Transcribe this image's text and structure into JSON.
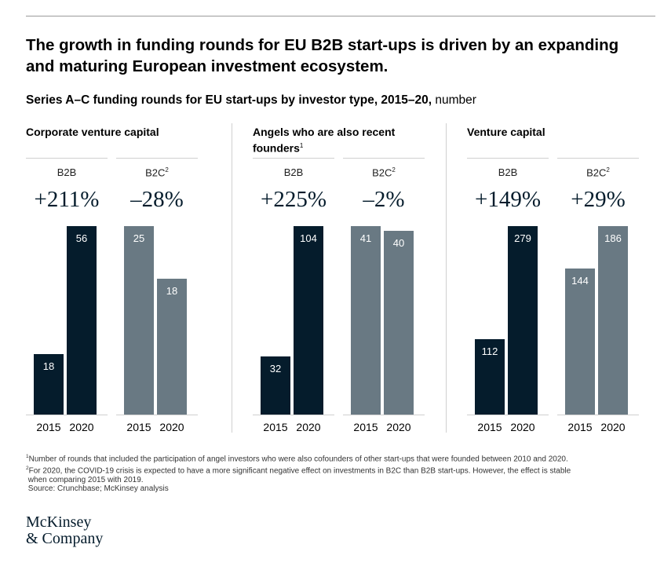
{
  "title": "The growth in funding rounds for EU B2B start-ups is driven by an expanding and maturing European investment ecosystem.",
  "subtitle_bold": "Series A–C funding rounds for EU start-ups by investor type, 2015–20,",
  "subtitle_unit": " number",
  "colors": {
    "b2b": "#051c2c",
    "b2c": "#697983",
    "pct": "#051c2c"
  },
  "chart_data": [
    {
      "type": "bar",
      "title": "Corporate venture capital",
      "title_sup": "",
      "groups": [
        {
          "name": "B2B",
          "sup": "",
          "change": "+211%",
          "categories": [
            "2015",
            "2020"
          ],
          "values": [
            18,
            56
          ]
        },
        {
          "name": "B2C",
          "sup": "2",
          "change": "–28%",
          "categories": [
            "2015",
            "2020"
          ],
          "values": [
            25,
            18
          ]
        }
      ]
    },
    {
      "type": "bar",
      "title": "Angels who are also recent founders",
      "title_sup": "1",
      "groups": [
        {
          "name": "B2B",
          "sup": "",
          "change": "+225%",
          "categories": [
            "2015",
            "2020"
          ],
          "values": [
            32,
            104
          ]
        },
        {
          "name": "B2C",
          "sup": "2",
          "change": "–2%",
          "categories": [
            "2015",
            "2020"
          ],
          "values": [
            41,
            40
          ]
        }
      ]
    },
    {
      "type": "bar",
      "title": "Venture capital",
      "title_sup": "",
      "groups": [
        {
          "name": "B2B",
          "sup": "",
          "change": "+149%",
          "categories": [
            "2015",
            "2020"
          ],
          "values": [
            112,
            279
          ]
        },
        {
          "name": "B2C",
          "sup": "2",
          "change": "+29%",
          "categories": [
            "2015",
            "2020"
          ],
          "values": [
            144,
            186
          ]
        }
      ]
    }
  ],
  "footnotes": [
    {
      "sup": "1",
      "text": "Number of rounds that included the participation of angel investors who were also cofounders of other start-ups that were founded between 2010 and 2020."
    },
    {
      "sup": "2",
      "text": "For 2020, the COVID-19 crisis is expected to have a more significant negative effect on investments in B2C than B2B start-ups. However, the effect is stable\n when comparing 2015 with 2019."
    },
    {
      "sup": "",
      "text": " Source: Crunchbase; McKinsey analysis"
    }
  ],
  "logo": {
    "line1": "McKinsey",
    "line2": "& Company"
  }
}
